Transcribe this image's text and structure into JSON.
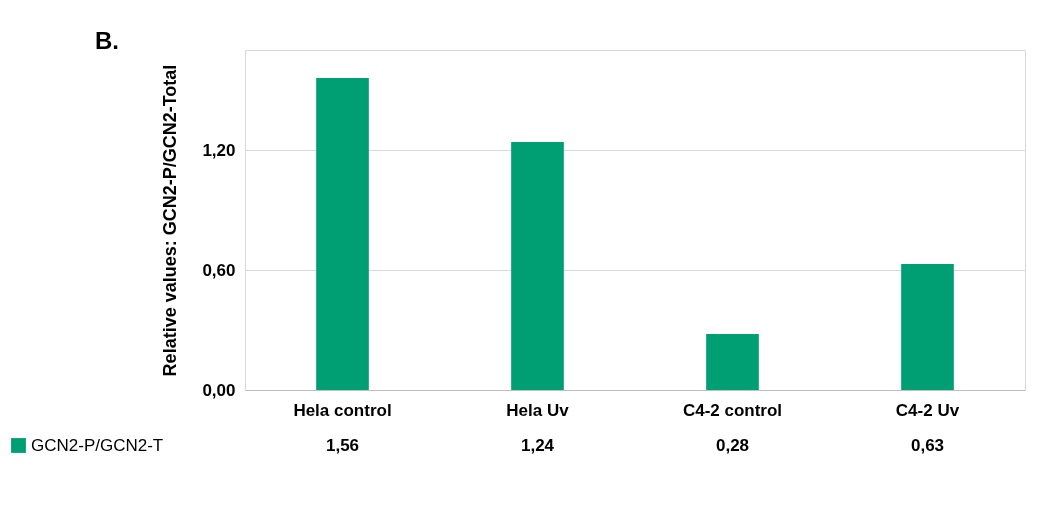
{
  "chart_data": {
    "type": "bar",
    "title": "B.",
    "ylabel": "Relative values: GCN2-P/GCN2-Total",
    "categories": [
      "Hela control",
      "Hela Uv",
      "C4-2 control",
      "C4-2 Uv"
    ],
    "series": [
      {
        "name": "GCN2-P/GCN2-T",
        "color": "#009e73",
        "values": [
          1.56,
          1.24,
          0.28,
          0.63
        ],
        "value_labels": [
          "1,56",
          "1,24",
          "0,28",
          "0,63"
        ]
      }
    ],
    "ylim": [
      0,
      1.7
    ],
    "yticks": [
      {
        "value": 0,
        "label": "0,00"
      },
      {
        "value": 0.6,
        "label": "0,60"
      },
      {
        "value": 1.2,
        "label": "1,20"
      }
    ],
    "grid": "y",
    "legend": "bottom left"
  }
}
